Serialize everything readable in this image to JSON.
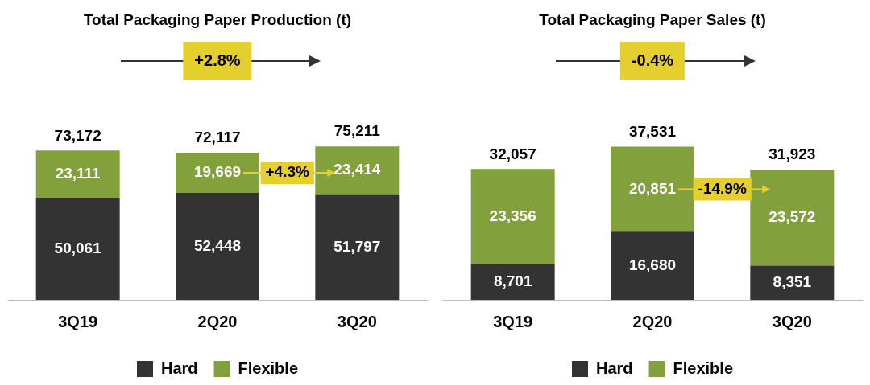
{
  "chart_data": [
    {
      "type": "bar",
      "title": "Total Packaging Paper Production (t)",
      "categories": [
        "3Q19",
        "2Q20",
        "3Q20"
      ],
      "stacked": true,
      "grid": false,
      "legend": "bottom",
      "series": [
        {
          "name": "Hard",
          "color": "#333333",
          "values": [
            50061,
            52448,
            51797
          ],
          "value_labels": [
            "50,061",
            "52,448",
            "51,797"
          ]
        },
        {
          "name": "Flexible",
          "color": "#82a03c",
          "values": [
            23111,
            19669,
            23414
          ],
          "value_labels": [
            "23,111",
            "19,669",
            "23,414"
          ]
        }
      ],
      "totals": [
        "73,172",
        "72,117",
        "75,211"
      ],
      "annotations": [
        "+2.8%",
        "+4.3%"
      ]
    },
    {
      "type": "bar",
      "title": "Total Packaging Paper Sales (t)",
      "categories": [
        "3Q19",
        "2Q20",
        "3Q20"
      ],
      "stacked": true,
      "grid": false,
      "legend": "bottom",
      "series": [
        {
          "name": "Hard",
          "color": "#333333",
          "values": [
            8701,
            16680,
            8351
          ],
          "value_labels": [
            "8,701",
            "16,680",
            "8,351"
          ]
        },
        {
          "name": "Flexible",
          "color": "#82a03c",
          "values": [
            23356,
            20851,
            23572
          ],
          "value_labels": [
            "23,356",
            "20,851",
            "23,572"
          ]
        }
      ],
      "totals": [
        "32,057",
        "37,531",
        "31,923"
      ],
      "annotations": [
        "-0.4%",
        "-14.9%"
      ]
    }
  ]
}
